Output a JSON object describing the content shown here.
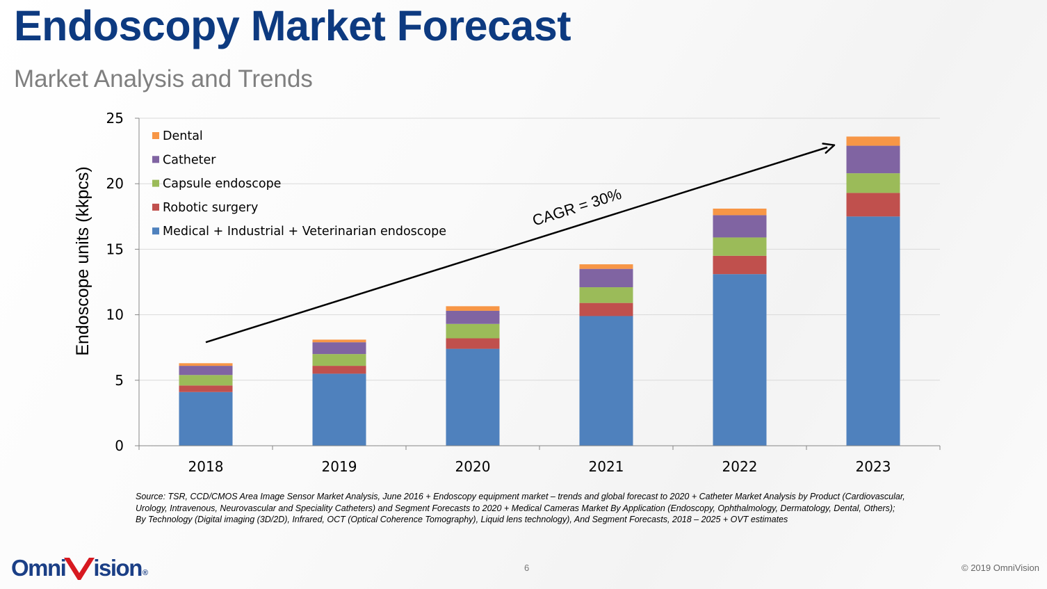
{
  "slide": {
    "title": "Endoscopy Market Forecast",
    "subtitle": "Market Analysis and Trends",
    "source": "Source: TSR, CCD/CMOS Area Image Sensor Market Analysis, June 2016 + Endoscopy equipment market – trends and global forecast to 2020 + Catheter Market Analysis by Product (Cardiovascular, Urology, Intravenous, Neurovascular and Speciality Catheters) and Segment Forecasts to 2020 + Medical Cameras Market By Application (Endoscopy, Ophthalmology, Dermatology, Dental, Others); By Technology (Digital imaging (3D/2D), Infrared, OCT (Optical Coherence Tomography), Liquid lens technology), And Segment Forecasts, 2018 – 2025 + OVT estimates",
    "page_number": "6",
    "copyright": "© 2019 OmniVision",
    "logo": {
      "left": "Omni",
      "right": "ision",
      "reg": "®"
    }
  },
  "chart_data": {
    "type": "bar",
    "stacked": true,
    "title": "",
    "xlabel": "",
    "ylabel": "Endoscope units (kkpcs)",
    "ylim": [
      0,
      25
    ],
    "yticks": [
      0,
      5,
      10,
      15,
      20,
      25
    ],
    "grid": true,
    "legend_position": "top-left",
    "categories": [
      "2018",
      "2019",
      "2020",
      "2021",
      "2022",
      "2023"
    ],
    "series": [
      {
        "name": "Medical + Industrial + Veterinarian endoscope",
        "color": "#4f81bd",
        "values": [
          4.1,
          5.5,
          7.4,
          9.9,
          13.1,
          17.5
        ]
      },
      {
        "name": "Robotic surgery",
        "color": "#c0504d",
        "values": [
          0.5,
          0.6,
          0.8,
          1.0,
          1.4,
          1.8
        ]
      },
      {
        "name": "Capsule endoscope",
        "color": "#9bbb59",
        "values": [
          0.8,
          0.9,
          1.1,
          1.2,
          1.4,
          1.5
        ]
      },
      {
        "name": "Catheter",
        "color": "#8064a2",
        "values": [
          0.7,
          0.9,
          1.0,
          1.4,
          1.7,
          2.1
        ]
      },
      {
        "name": "Dental",
        "color": "#f79646",
        "values": [
          0.2,
          0.2,
          0.35,
          0.35,
          0.5,
          0.7
        ]
      }
    ],
    "legend_order": [
      "Dental",
      "Catheter",
      "Capsule endoscope",
      "Robotic surgery",
      "Medical + Industrial + Veterinarian endoscope"
    ],
    "annotation": {
      "text": "CAGR = 30%",
      "from_category": "2018",
      "from_value": 7.9,
      "to_category": "2023",
      "to_value": 23.0
    }
  }
}
